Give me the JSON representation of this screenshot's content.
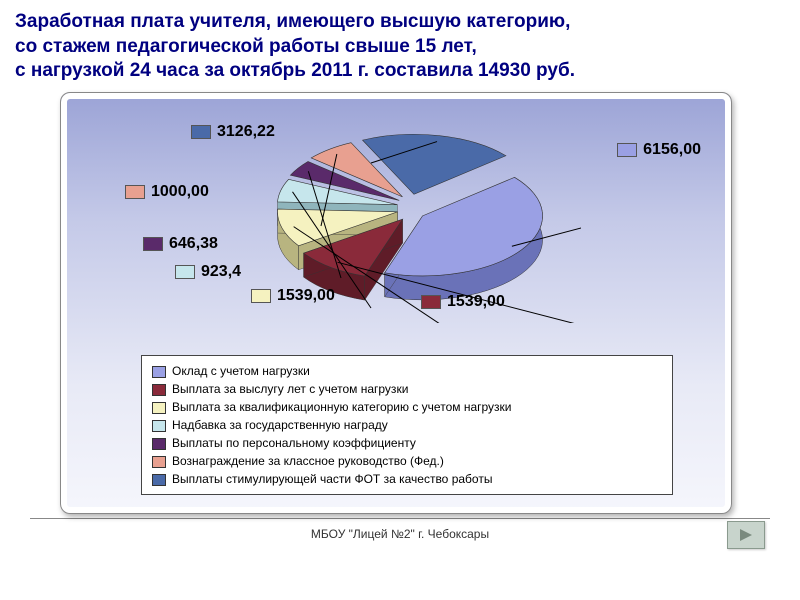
{
  "title_lines": [
    "Заработная плата учителя, имеющего высшую категорию,",
    " со стажем педагогической работы свыше 15 лет,",
    "с нагрузкой 24 часа за октябрь 2011 г. составила 14930 руб."
  ],
  "footer_text": "МБОУ \"Лицей №2\" г. Чебоксары",
  "chart": {
    "type": "pie-3d",
    "background_gradient": [
      "#9ba3d6",
      "#e8eaf6"
    ],
    "slices": [
      {
        "label": "Оклад с учетом нагрузки",
        "value": 6156.0,
        "display": "6156,00",
        "color": "#9aa0e4",
        "side_color": "#6a72b8"
      },
      {
        "label": "Выплата за выслугу лет с учетом нагрузки",
        "value": 1539.0,
        "display": "1539,00",
        "color": "#8a2a3a",
        "side_color": "#5f1c28"
      },
      {
        "label": "Выплата за квалификационную категорию с учетом нагрузки",
        "value": 1539.0,
        "display": "1539,00",
        "color": "#f5f2c0",
        "side_color": "#b8b480"
      },
      {
        "label": "Надбавка за государственную награду",
        "value": 923.4,
        "display": "923,4",
        "color": "#c6e6ec",
        "side_color": "#8fb5bc"
      },
      {
        "label": "Выплаты по персональному коэффициенту",
        "value": 646.38,
        "display": "646,38",
        "color": "#5a2a6a",
        "side_color": "#3e1c4a"
      },
      {
        "label": "Вознаграждение за классное руководство (Фед.)",
        "value": 1000.0,
        "display": "1000,00",
        "color": "#e8a090",
        "side_color": "#b87565"
      },
      {
        "label": "Выплаты стимулирующей части ФОТ за качество работы",
        "value": 3126.22,
        "display": "3126,22",
        "color": "#4a6aa8",
        "side_color": "#33497a"
      }
    ],
    "label_fontsize": 16,
    "legend_fontsize": 12,
    "legend_border": "#444444",
    "legend_bg": "#ffffff",
    "title_color": "#000080"
  },
  "nav": {
    "arrow_color": "#7a8a7e",
    "bg_color": "#c8d4cc"
  }
}
